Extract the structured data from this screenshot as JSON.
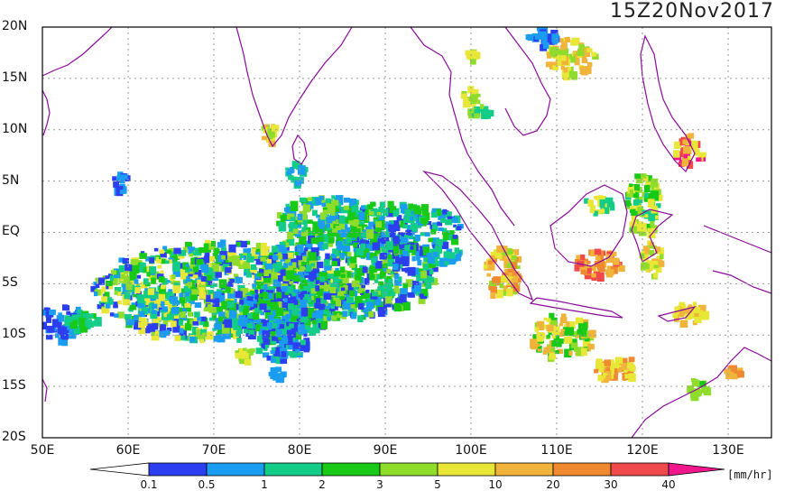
{
  "title": "15Z20Nov2017",
  "lat_labels": [
    "20N",
    "15N",
    "10N",
    "5N",
    "EQ",
    "5S",
    "10S",
    "15S",
    "20S"
  ],
  "lon_labels": [
    "50E",
    "60E",
    "70E",
    "80E",
    "90E",
    "100E",
    "110E",
    "120E",
    "130E"
  ],
  "colorbar": {
    "units": "[mm/hr]",
    "tick_labels": [
      "0.1",
      "0.5",
      "1",
      "2",
      "3",
      "5",
      "10",
      "20",
      "30",
      "40"
    ],
    "colors": [
      "#2b3ff0",
      "#1a9cf0",
      "#12cc88",
      "#18c918",
      "#8fdc2a",
      "#e8e636",
      "#f0b43a",
      "#f08a30",
      "#f04a4a",
      "#f0168c"
    ],
    "under_color": "#ffffff",
    "over_color": "#f0168c"
  },
  "colors": {
    "coast": "#8a0a9a",
    "grid": "#9a9a9a"
  }
}
